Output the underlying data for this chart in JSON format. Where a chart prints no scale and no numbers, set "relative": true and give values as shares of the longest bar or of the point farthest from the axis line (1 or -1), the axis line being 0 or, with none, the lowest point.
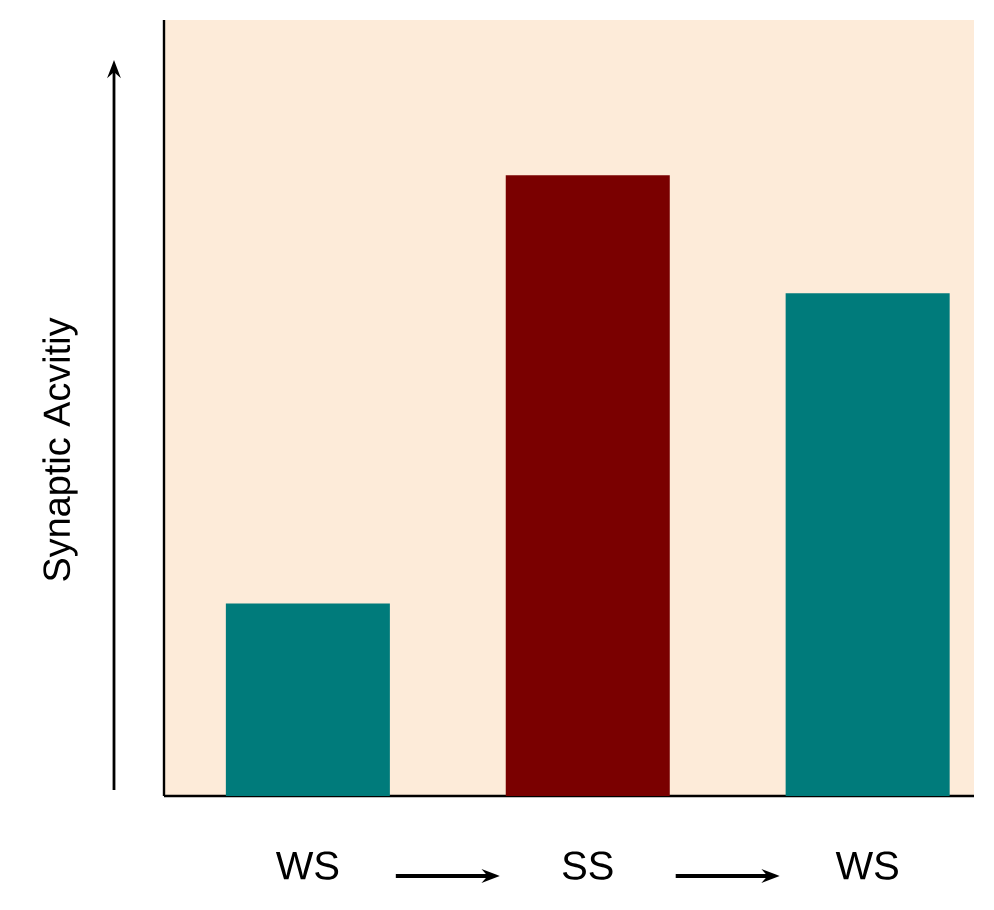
{
  "chart_data": {
    "type": "bar",
    "relative": true,
    "ylabel": "Synaptic Acvitiy",
    "categories": [
      "WS",
      "SS",
      "WS"
    ],
    "values": [
      0.31,
      1,
      0.81
    ],
    "colors": [
      "#007b7b",
      "#7a0000",
      "#007b7b"
    ]
  }
}
